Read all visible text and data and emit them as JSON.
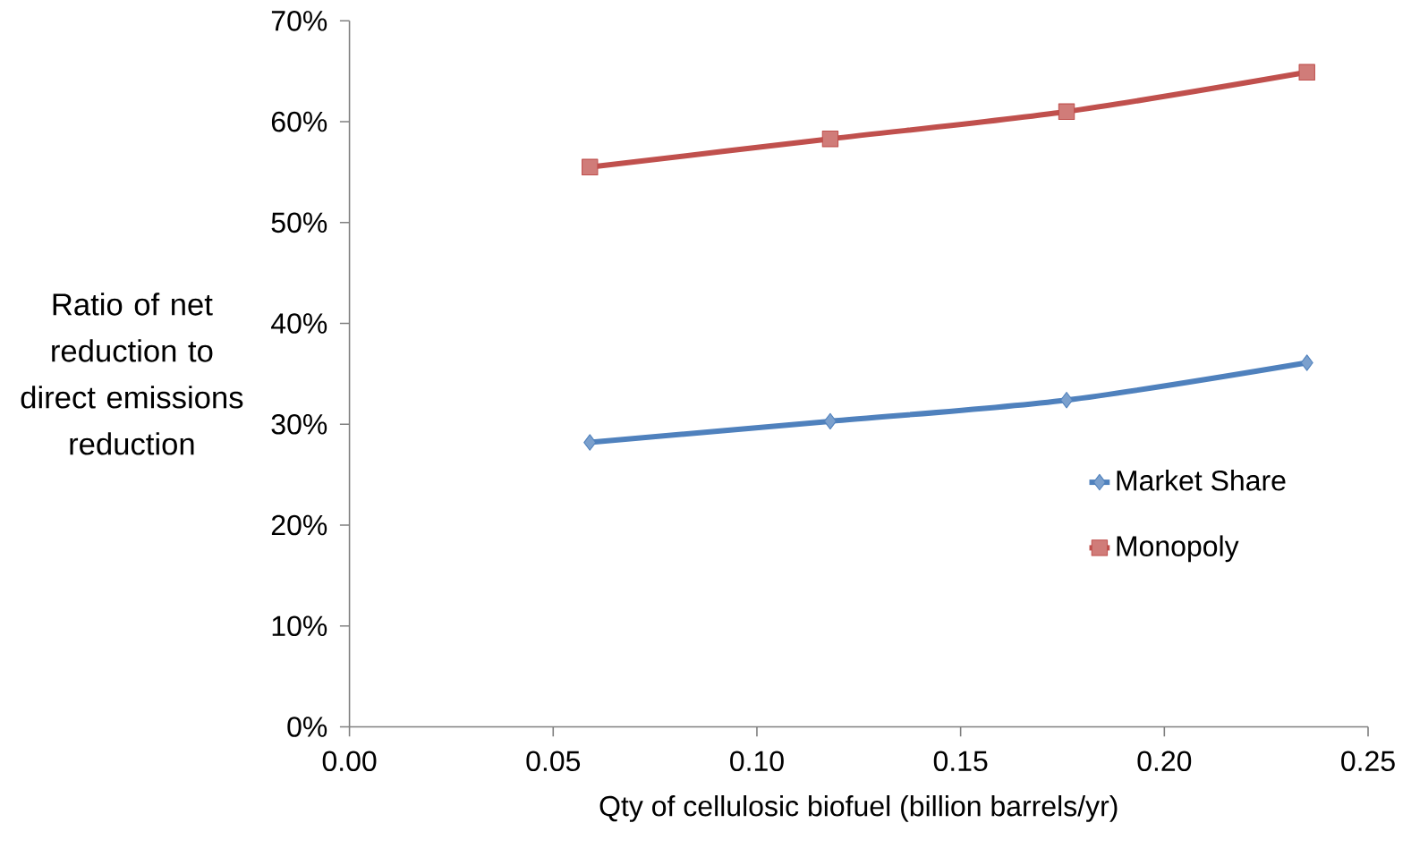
{
  "chart_data": {
    "type": "line",
    "xlabel": "Qty of cellulosic biofuel (billion barrels/yr)",
    "ylabel": "Ratio of net reduction to direct emissions reduction",
    "x": [
      0.059,
      0.118,
      0.176,
      0.235
    ],
    "series": [
      {
        "name": "Market Share",
        "color": "#4f81bd",
        "marker": "diamond",
        "values": [
          28.2,
          30.3,
          32.4,
          36.1
        ]
      },
      {
        "name": "Monopoly",
        "color": "#c0504d",
        "marker": "square",
        "values": [
          55.5,
          58.3,
          61.0,
          64.9
        ]
      }
    ],
    "xlim": [
      0,
      0.25
    ],
    "xticks": [
      {
        "value": 0,
        "label": "0.00"
      },
      {
        "value": 0.05,
        "label": "0.05"
      },
      {
        "value": 0.1,
        "label": "0.10"
      },
      {
        "value": 0.15,
        "label": "0.15"
      },
      {
        "value": 0.2,
        "label": "0.20"
      },
      {
        "value": 0.25,
        "label": "0.25"
      }
    ],
    "ylim": [
      0,
      70
    ],
    "yticks": [
      {
        "value": 0,
        "label": "0%"
      },
      {
        "value": 10,
        "label": "10%"
      },
      {
        "value": 20,
        "label": "20%"
      },
      {
        "value": 30,
        "label": "30%"
      },
      {
        "value": 40,
        "label": "40%"
      },
      {
        "value": 50,
        "label": "50%"
      },
      {
        "value": 60,
        "label": "60%"
      },
      {
        "value": 70,
        "label": "70%"
      }
    ],
    "grid": false,
    "legend": "right",
    "line_style": "solid"
  }
}
